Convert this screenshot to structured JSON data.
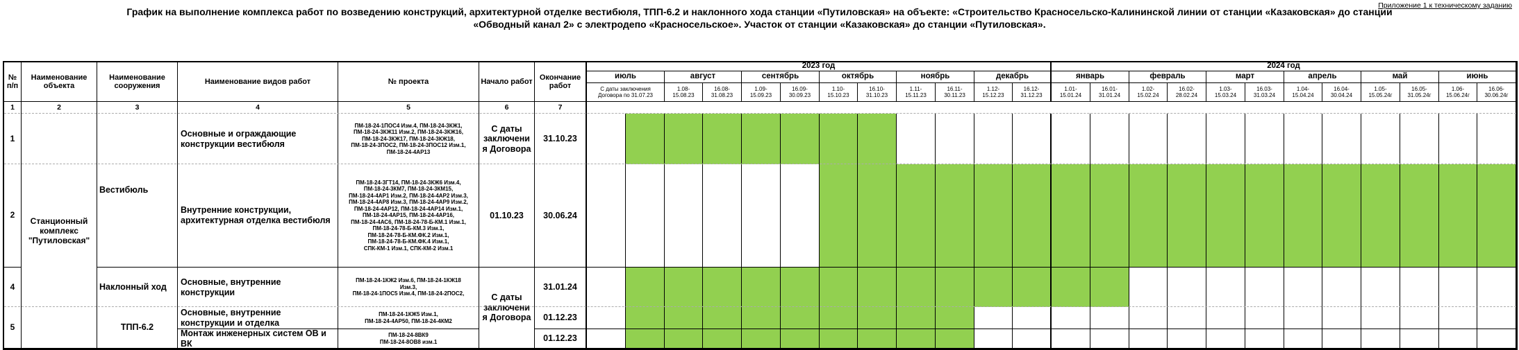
{
  "appendix_note": "Приложение 1 к техническому заданию",
  "title": "График на выполнение комплекса работ по возведению конструкций, архитектурной отделке вестибюля, ТПП-6.2 и наклонного хода станции «Путиловская» на объекте: «Строительство Красносельско-Калининской линии от станции «Казаковская» до станции\n«Обводный канал 2» с электродепо «Красносельское». Участок от станции «Казаковская» до станции «Путиловская».",
  "table": {
    "bar_color": "#92D050",
    "headers": [
      "№ п/п",
      "Наименование объекта",
      "Наименование сооружения",
      "Наименование видов  работ",
      "№ проекта",
      "Начало работ",
      "Окончание работ"
    ],
    "column_numbers": [
      "1",
      "2",
      "3",
      "4",
      "5",
      "6",
      "7"
    ],
    "years": [
      {
        "label": "2023 год",
        "half_months": 12
      },
      {
        "label": "2024 год",
        "half_months": 12
      }
    ],
    "months": [
      {
        "name": "июль",
        "subs": [
          {
            "label": "С даты заключения\nДоговора по 31.07.23",
            "span": 2
          }
        ]
      },
      {
        "name": "август",
        "subs": [
          {
            "label": "1.08-\n15.08.23"
          },
          {
            "label": "16.08-\n31.08.23"
          }
        ]
      },
      {
        "name": "сентябрь",
        "subs": [
          {
            "label": "1.09-\n15.09.23"
          },
          {
            "label": "16.09-\n30.09.23"
          }
        ]
      },
      {
        "name": "октябрь",
        "subs": [
          {
            "label": "1.10-\n15.10.23"
          },
          {
            "label": "16.10-\n31.10.23"
          }
        ]
      },
      {
        "name": "ноябрь",
        "subs": [
          {
            "label": "1.11-\n15.11.23"
          },
          {
            "label": "16.11-\n30.11.23"
          }
        ]
      },
      {
        "name": "декабрь",
        "subs": [
          {
            "label": "1.12-\n15.12.23"
          },
          {
            "label": "16.12-\n31.12.23"
          }
        ]
      },
      {
        "name": "январь",
        "subs": [
          {
            "label": "1.01-\n15.01.24"
          },
          {
            "label": "16.01-\n31.01.24"
          }
        ]
      },
      {
        "name": "февраль",
        "subs": [
          {
            "label": "1.02-\n15.02.24"
          },
          {
            "label": "16.02-\n28.02.24"
          }
        ]
      },
      {
        "name": "март",
        "subs": [
          {
            "label": "1.03-\n15.03.24"
          },
          {
            "label": "16.03-\n31.03.24"
          }
        ]
      },
      {
        "name": "апрель",
        "subs": [
          {
            "label": "1.04-\n15.04.24"
          },
          {
            "label": "16.04-\n30.04.24"
          }
        ]
      },
      {
        "name": "май",
        "subs": [
          {
            "label": "1.05-\n15.05.24г"
          },
          {
            "label": "16.05-\n31.05.24г"
          }
        ]
      },
      {
        "name": "июнь",
        "subs": [
          {
            "label": "1.06-\n15.06.24г"
          },
          {
            "label": "16.06-\n30.06.24г"
          }
        ]
      }
    ],
    "object_name": "Станционный комплекс \"Путиловская\"",
    "structures": [
      {
        "label": "Вестибюль",
        "row_from": 0,
        "row_to": 1,
        "align": "left"
      },
      {
        "label": "Наклонный ход",
        "row_from": 2,
        "row_to": 2,
        "align": "left"
      },
      {
        "label": "ТПП-6.2",
        "row_from": 3,
        "row_to": 4,
        "align": "center"
      }
    ],
    "rows": [
      {
        "num": "1",
        "works": "Основные и ограждающие конструкции вестибюля",
        "project": "ПМ-18-24-1ПОС4 Изм.4, ПМ-18-24-3КЖ1,\nПМ-18-24-3КЖ11 Изм.2, ПМ-18-24-3КЖ16,\nПМ-18-24-3КЖ17, ПМ-18-24-3КЖ18,\nПМ-18-24-3ПОС2, ПМ-18-24-3ПОС12 Изм.1,\nПМ-18-24-4АР13",
        "start": "С даты\nзаключени\nя Договора",
        "end": "31.10.23",
        "bar_start": 1,
        "bar_end": 7
      },
      {
        "num": "2",
        "works": "Внутренние конструкции, архитектурная отделка вестибюля",
        "project": "ПМ-18-24-3ГТ14, ПМ-18-24-3КЖ6 Изм.4,\nПМ-18-24-3КМ7, ПМ-18-24-3КМ15,\nПМ-18-24-4АР1 Изм.2, ПМ-18-24-4АР2 Изм.3,\nПМ-18-24-4АР8 Изм.3, ПМ-18-24-4АР9 Изм.2,\nПМ-18-24-4АР12, ПМ-18-24-4АР14 Изм.1,\nПМ-18-24-4АР15, ПМ-18-24-4АР16,\nПМ-18-24-4АС6, ПМ-18-24-78-Б-КМ.1 Изм.1,\nПМ-18-24-78-Б-КМ.3 Изм.1,\nПМ-18-24-78-Б-КМ.ФК.2 Изм.1,\nПМ-18-24-78-Б-КМ.ФК.4 Изм.1,\nСПК-КМ-1 Изм.1, СПК-КМ-2 Изм.1",
        "start": "01.10.23",
        "end": "30.06.24",
        "bar_start": 6,
        "bar_end": 23
      },
      {
        "num": "4",
        "works": "Основные, внутренние конструкции",
        "project": "ПМ-18-24-1КЖ2 Изм.6, ПМ-18-24-1КЖ18\nИзм.3,\nПМ-18-24-1ПОС5 Изм.4, ПМ-18-24-2ПОС2,",
        "start": "С даты\nзаключени\nя Договора",
        "end": "31.01.24",
        "bar_start": 1,
        "bar_end": 13
      },
      {
        "num": "5",
        "works": "Основные, внутренние конструкции и отделка",
        "project": "ПМ-18-24-1КЖ5 Изм.1,\nПМ-18-24-4АР50, ПМ-18-24-4КМ2",
        "end": "01.12.23",
        "bar_start": 1,
        "bar_end": 9
      },
      {
        "works": "Монтаж инженерных систем ОВ и ВК",
        "project": "ПМ-18-24-8ВК9\nПМ-18-24-8ОВ8 изм.1",
        "end": "01.12.23",
        "bar_start": 1,
        "bar_end": 9
      }
    ]
  }
}
